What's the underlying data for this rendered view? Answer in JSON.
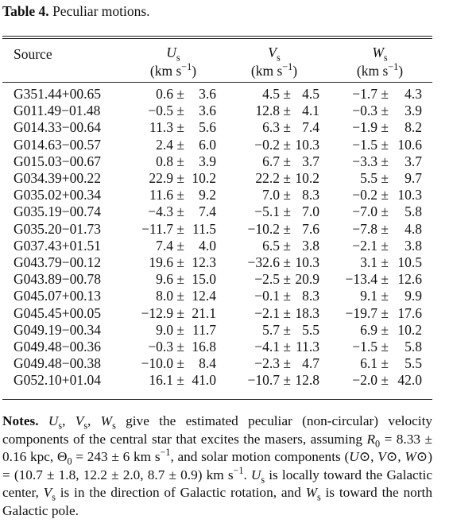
{
  "title": {
    "label": "Table 4.",
    "text": "Peculiar motions."
  },
  "table": {
    "header": {
      "source": "Source",
      "columns": [
        {
          "symbol": "U",
          "sub": "s",
          "unit_open": "(km s",
          "unit_exp": "−1",
          "unit_close": ")"
        },
        {
          "symbol": "V",
          "sub": "s",
          "unit_open": "(km s",
          "unit_exp": "−1",
          "unit_close": ")"
        },
        {
          "symbol": "W",
          "sub": "s",
          "unit_open": "(km s",
          "unit_exp": "−1",
          "unit_close": ")"
        }
      ]
    },
    "rows": [
      [
        "G351.44+00.65",
        [
          "0.6 ±",
          "3.6"
        ],
        [
          "4.5 ±",
          "4.5"
        ],
        [
          "−1.7 ±",
          "4.3"
        ]
      ],
      [
        "G011.49−01.48",
        [
          "−0.5 ±",
          "3.6"
        ],
        [
          "12.8 ±",
          "4.1"
        ],
        [
          "−0.3 ±",
          "3.9"
        ]
      ],
      [
        "G014.33−00.64",
        [
          "11.3 ±",
          "5.6"
        ],
        [
          "6.3 ±",
          "7.4"
        ],
        [
          "−1.9 ±",
          "8.2"
        ]
      ],
      [
        "G014.63−00.57",
        [
          "2.4 ±",
          "6.0"
        ],
        [
          "−0.2 ±",
          "10.3"
        ],
        [
          "−1.5 ±",
          "10.6"
        ]
      ],
      [
        "G015.03−00.67",
        [
          "0.8 ±",
          "3.9"
        ],
        [
          "6.7 ±",
          "3.7"
        ],
        [
          "−3.3 ±",
          "3.7"
        ]
      ],
      [
        "G034.39+00.22",
        [
          "22.9 ±",
          "10.2"
        ],
        [
          "22.2 ±",
          "10.2"
        ],
        [
          "5.5 ±",
          "9.7"
        ]
      ],
      [
        "G035.02+00.34",
        [
          "11.6 ±",
          "9.2"
        ],
        [
          "7.0 ±",
          "8.3"
        ],
        [
          "−0.2 ±",
          "10.3"
        ]
      ],
      [
        "G035.19−00.74",
        [
          "−4.3 ±",
          "7.4"
        ],
        [
          "−5.1 ±",
          "7.0"
        ],
        [
          "−7.0 ±",
          "5.8"
        ]
      ],
      [
        "G035.20−01.73",
        [
          "−11.7 ±",
          "11.5"
        ],
        [
          "−10.2 ±",
          "7.6"
        ],
        [
          "−7.8 ±",
          "4.8"
        ]
      ],
      [
        "G037.43+01.51",
        [
          "7.4 ±",
          "4.0"
        ],
        [
          "6.5 ±",
          "3.8"
        ],
        [
          "−2.1 ±",
          "3.8"
        ]
      ],
      [
        "G043.79−00.12",
        [
          "19.6 ±",
          "12.3"
        ],
        [
          "−32.6 ±",
          "10.3"
        ],
        [
          "3.1 ±",
          "10.5"
        ]
      ],
      [
        "G043.89−00.78",
        [
          "9.6 ±",
          "15.0"
        ],
        [
          "−2.5 ±",
          "20.9"
        ],
        [
          "−13.4 ±",
          "12.6"
        ]
      ],
      [
        "G045.07+00.13",
        [
          "8.0 ±",
          "12.4"
        ],
        [
          "−0.1 ±",
          "8.3"
        ],
        [
          "9.1 ±",
          "9.9"
        ]
      ],
      [
        "G045.45+00.05",
        [
          "−12.9 ±",
          "21.1"
        ],
        [
          "−2.1 ±",
          "18.3"
        ],
        [
          "−19.7 ±",
          "17.6"
        ]
      ],
      [
        "G049.19−00.34",
        [
          "9.0 ±",
          "11.7"
        ],
        [
          "5.7 ±",
          "5.5"
        ],
        [
          "6.9 ±",
          "10.2"
        ]
      ],
      [
        "G049.48−00.36",
        [
          "−0.3 ±",
          "16.8"
        ],
        [
          "−4.1 ±",
          "11.3"
        ],
        [
          "−1.5 ±",
          "5.8"
        ]
      ],
      [
        "G049.48−00.38",
        [
          "−10.0 ±",
          "8.4"
        ],
        [
          "−2.3 ±",
          "4.7"
        ],
        [
          "6.1 ±",
          "5.5"
        ]
      ],
      [
        "G052.10+01.04",
        [
          "16.1 ±",
          "41.0"
        ],
        [
          "−10.7 ±",
          "12.8"
        ],
        [
          "−2.0 ±",
          "42.0"
        ]
      ]
    ]
  },
  "notes": [
    {
      "text": "Notes.",
      "style": "b"
    },
    {
      "text": " "
    },
    {
      "text": "U",
      "style": "i"
    },
    {
      "text": "s",
      "style": "sub"
    },
    {
      "text": ", "
    },
    {
      "text": "V",
      "style": "i"
    },
    {
      "text": "s",
      "style": "sub"
    },
    {
      "text": ", "
    },
    {
      "text": "W",
      "style": "i"
    },
    {
      "text": "s",
      "style": "sub"
    },
    {
      "text": " give the estimated peculiar (non-circular) velocity components of the central star that excites the masers, assuming "
    },
    {
      "text": "R",
      "style": "i"
    },
    {
      "text": "0",
      "style": "sub"
    },
    {
      "text": " = 8.33 ± 0.16 kpc, Θ"
    },
    {
      "text": "0",
      "style": "sub"
    },
    {
      "text": " = 243 ± 6 km s"
    },
    {
      "text": "−1",
      "style": "sup"
    },
    {
      "text": ", and solar motion components ("
    },
    {
      "text": "U",
      "style": "i"
    },
    {
      "text": "⊙, "
    },
    {
      "text": "V",
      "style": "i"
    },
    {
      "text": "⊙, "
    },
    {
      "text": "W",
      "style": "i"
    },
    {
      "text": "⊙) = (10.7 ± 1.8, 12.2 ± 2.0, 8.7 ± 0.9) km s"
    },
    {
      "text": "−1",
      "style": "sup"
    },
    {
      "text": ". "
    },
    {
      "text": "U",
      "style": "i"
    },
    {
      "text": "s",
      "style": "sub"
    },
    {
      "text": " is locally toward the Galactic center, "
    },
    {
      "text": "V",
      "style": "i"
    },
    {
      "text": "s",
      "style": "sub"
    },
    {
      "text": " is in the direction of Galactic rotation, and "
    },
    {
      "text": "W",
      "style": "i"
    },
    {
      "text": "s",
      "style": "sub"
    },
    {
      "text": " is toward the north Galactic pole."
    }
  ]
}
